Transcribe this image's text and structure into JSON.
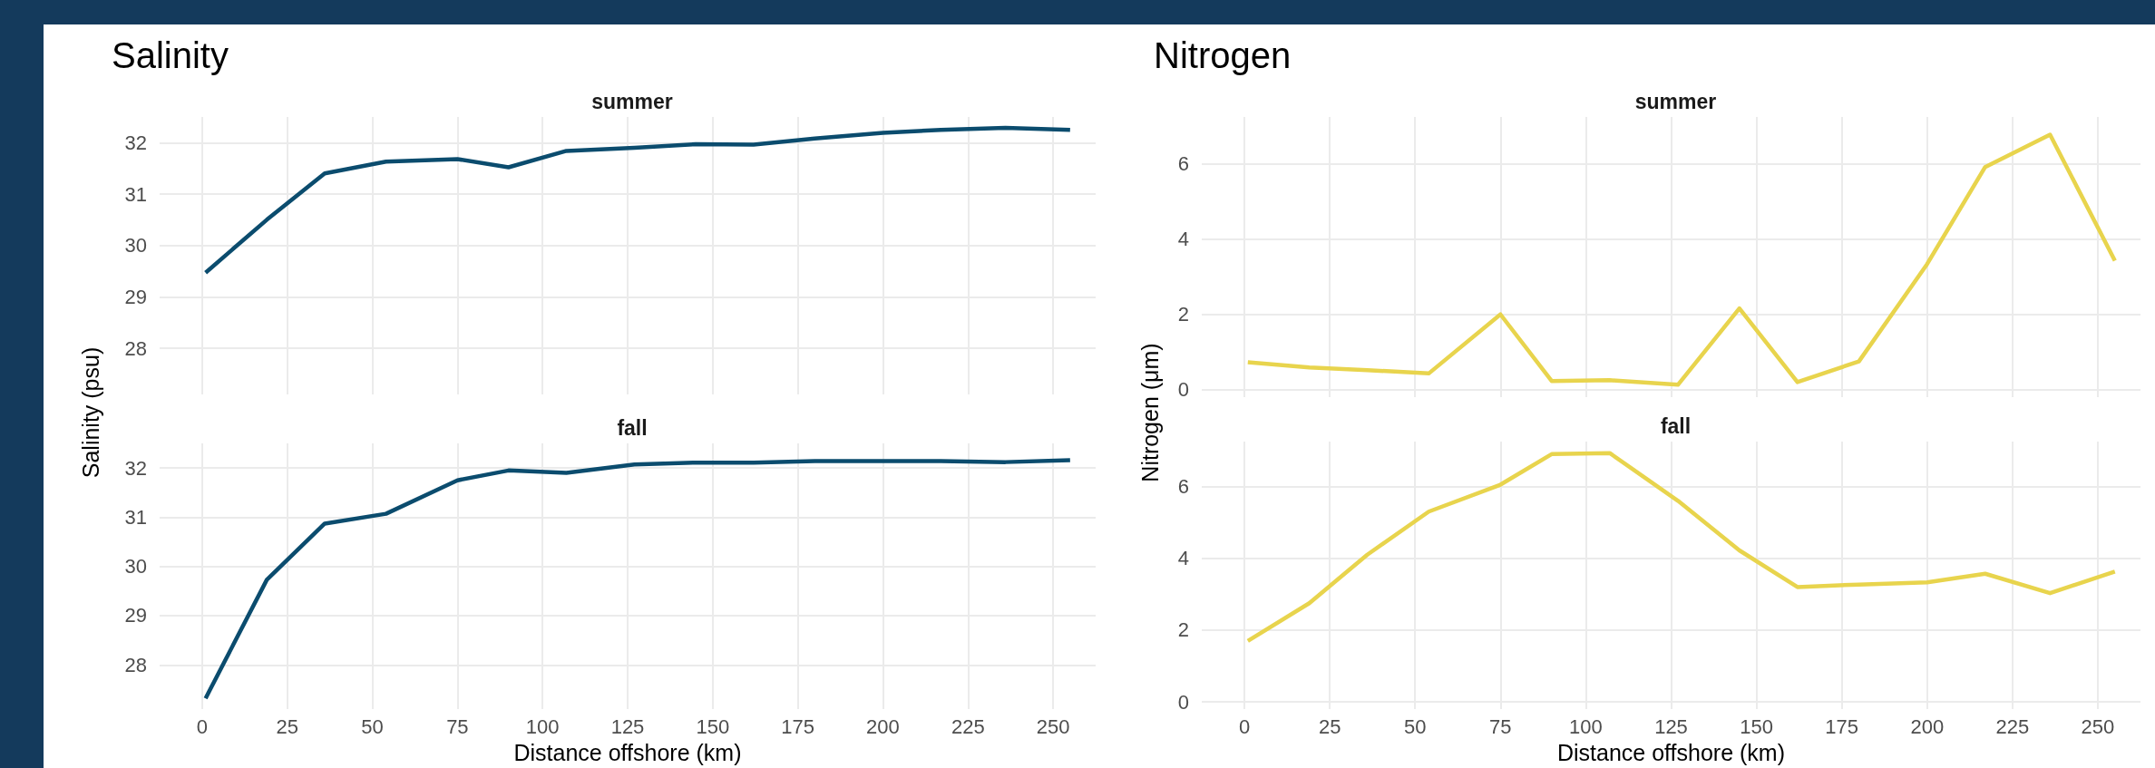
{
  "chart_data": [
    {
      "type": "line",
      "title": "Salinity",
      "subtitle": "summer",
      "ylabel": "Salinity (psu)",
      "x": [
        1,
        19,
        36,
        54,
        75,
        90,
        107,
        127,
        145,
        162,
        180,
        200,
        217,
        236,
        255
      ],
      "series": [
        {
          "color": "#0b4c6e",
          "values": [
            29.47,
            30.5,
            31.4,
            31.63,
            31.68,
            31.52,
            31.84,
            31.9,
            31.97,
            31.96,
            32.08,
            32.19,
            32.25,
            32.29,
            32.25
          ]
        }
      ],
      "xlim": [
        -12.5,
        262.5
      ],
      "xticks": [
        0,
        25,
        50,
        75,
        100,
        125,
        150,
        175,
        200,
        225,
        250
      ],
      "ylim": [
        27.1,
        32.5
      ],
      "yticks": [
        28,
        29,
        30,
        31,
        32
      ],
      "grid": true,
      "tick_labels": "y"
    },
    {
      "type": "line",
      "subtitle": "fall",
      "xlabel": "Distance offshore (km)",
      "x": [
        1,
        19,
        36,
        54,
        75,
        90,
        107,
        127,
        145,
        162,
        180,
        200,
        217,
        236,
        255
      ],
      "series": [
        {
          "color": "#0b4c6e",
          "values": [
            27.32,
            29.73,
            30.87,
            31.07,
            31.75,
            31.95,
            31.9,
            32.07,
            32.11,
            32.11,
            32.14,
            32.14,
            32.14,
            32.12,
            32.16
          ]
        }
      ],
      "xlim": [
        -12.5,
        262.5
      ],
      "xticks": [
        0,
        25,
        50,
        75,
        100,
        125,
        150,
        175,
        200,
        225,
        250
      ],
      "ylim": [
        27.1,
        32.5
      ],
      "yticks": [
        28,
        29,
        30,
        31,
        32
      ],
      "grid": true
    },
    {
      "type": "line",
      "title": "Nitrogen",
      "subtitle": "summer",
      "ylabel": "Nitrogen (μm)",
      "x": [
        1,
        19,
        36,
        54,
        75,
        90,
        107,
        127,
        145,
        162,
        180,
        200,
        217,
        236,
        255
      ],
      "series": [
        {
          "color": "#e8d44d",
          "values": [
            0.73,
            0.59,
            0.52,
            0.43,
            2.0,
            0.23,
            0.25,
            0.13,
            2.16,
            0.2,
            0.75,
            3.34,
            5.92,
            6.78,
            3.43
          ]
        }
      ],
      "xlim": [
        -12.5,
        262.5
      ],
      "xticks": [
        0,
        25,
        50,
        75,
        100,
        125,
        150,
        175,
        200,
        225,
        250
      ],
      "ylim": [
        -0.2,
        7.25
      ],
      "yticks": [
        0,
        2,
        4,
        6
      ],
      "grid": true,
      "tick_labels": "y"
    },
    {
      "type": "line",
      "subtitle": "fall",
      "xlabel": "Distance offshore (km)",
      "x": [
        1,
        19,
        36,
        54,
        75,
        90,
        107,
        127,
        145,
        162,
        180,
        200,
        217,
        236,
        255
      ],
      "series": [
        {
          "color": "#e8d44d",
          "values": [
            1.7,
            2.75,
            4.1,
            5.3,
            6.05,
            6.9,
            6.93,
            5.6,
            4.22,
            3.2,
            3.27,
            3.33,
            3.57,
            3.03,
            3.63
          ]
        }
      ],
      "xlim": [
        -12.5,
        262.5
      ],
      "xticks": [
        0,
        25,
        50,
        75,
        100,
        125,
        150,
        175,
        200,
        225,
        250
      ],
      "ylim": [
        -0.2,
        7.25
      ],
      "yticks": [
        0,
        2,
        4,
        6
      ],
      "grid": true
    }
  ]
}
